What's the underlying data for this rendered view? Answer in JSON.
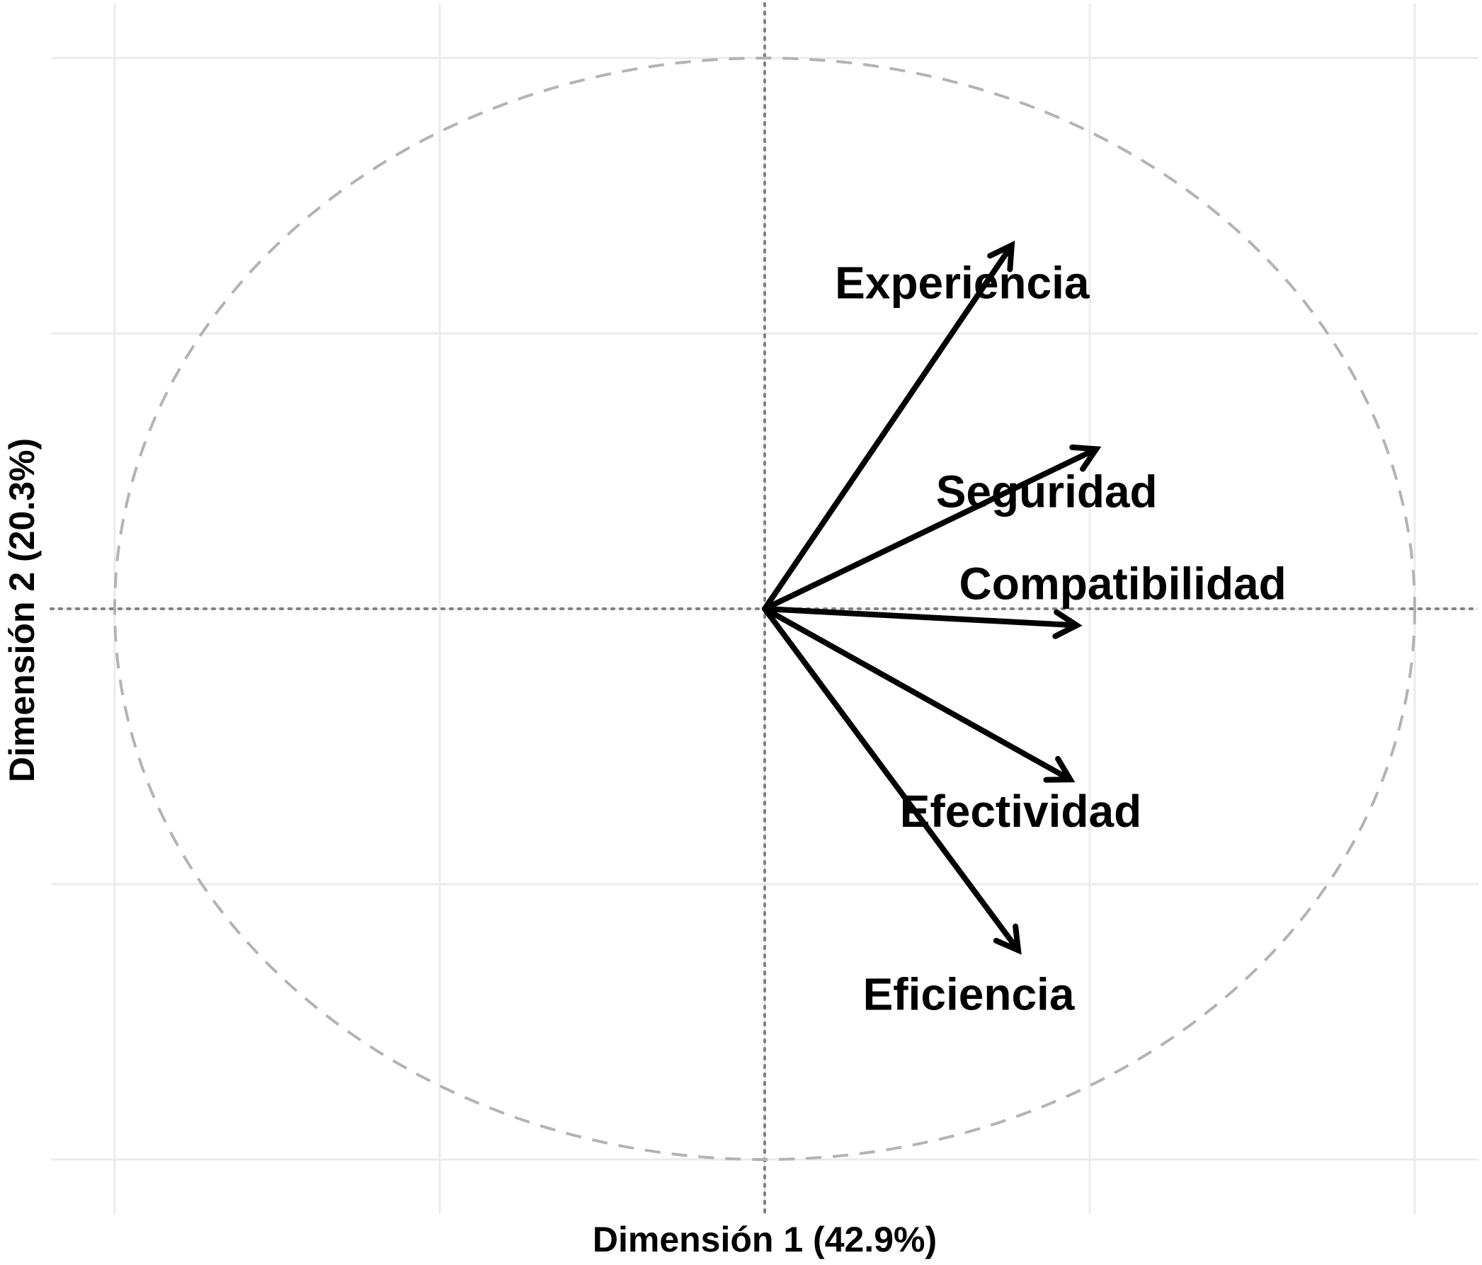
{
  "chart_data": {
    "type": "scatter",
    "subtype": "pca-variable-correlation-circle",
    "title": "",
    "xlabel": "Dimensión 1 (42.9%)",
    "ylabel": "Dimensión 2 (20.3%)",
    "xlim": [
      -1.1,
      1.1
    ],
    "ylim": [
      -1.0,
      1.0
    ],
    "grid": true,
    "xgrid": [
      -1.0,
      -0.5,
      0.0,
      0.5,
      1.0
    ],
    "ygrid": [
      -1.0,
      -0.5,
      0.0,
      0.5,
      1.0
    ],
    "unit_circle": true,
    "variables": [
      {
        "name": "Experiencia",
        "x": 0.38,
        "y": 0.66
      },
      {
        "name": "Seguridad",
        "x": 0.51,
        "y": 0.29
      },
      {
        "name": "Compatibilidad",
        "x": 0.48,
        "y": -0.03
      },
      {
        "name": "Efectividad",
        "x": 0.47,
        "y": -0.31
      },
      {
        "name": "Eficiencia",
        "x": 0.39,
        "y": -0.62
      }
    ],
    "colors": {
      "arrow": "#000000",
      "grid": "#ebebeb",
      "circle": "#b3b3b3",
      "zero_line": "#808080"
    }
  }
}
